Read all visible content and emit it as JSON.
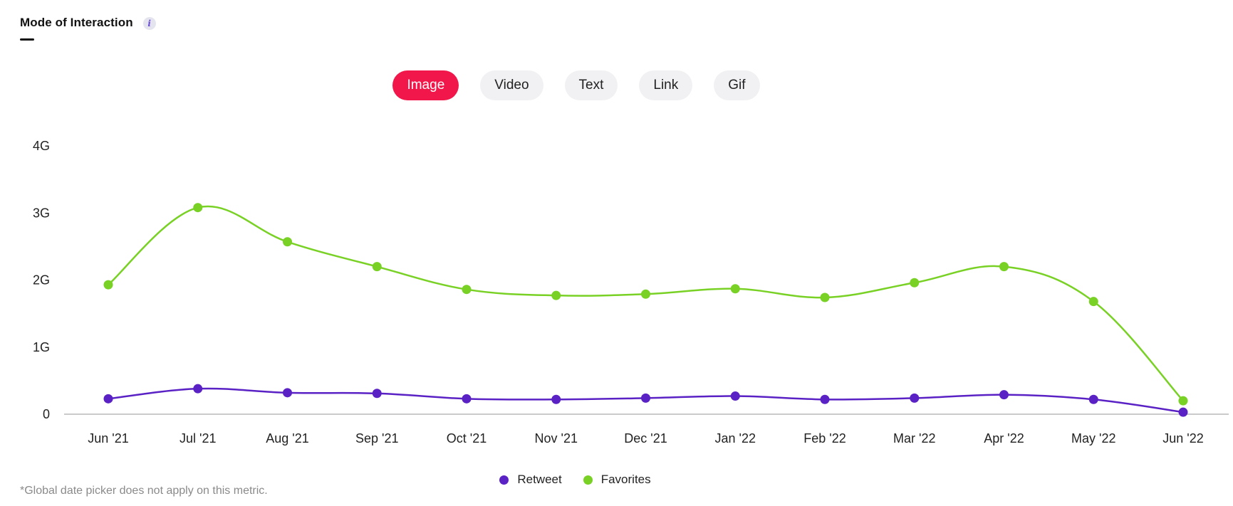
{
  "header": {
    "title": "Mode of Interaction",
    "info_glyph": "i"
  },
  "tabs": [
    {
      "label": "Image",
      "active": true
    },
    {
      "label": "Video",
      "active": false
    },
    {
      "label": "Text",
      "active": false
    },
    {
      "label": "Link",
      "active": false
    },
    {
      "label": "Gif",
      "active": false
    }
  ],
  "colors": {
    "accent": "#f1174a",
    "retweet": "#5a22c4",
    "favorites": "#78d124",
    "axis": "#aaaaaa"
  },
  "chart_data": {
    "type": "line",
    "categories": [
      "Jun '21",
      "Jul '21",
      "Aug '21",
      "Sep '21",
      "Oct '21",
      "Nov '21",
      "Dec '21",
      "Jan '22",
      "Feb '22",
      "Mar '22",
      "Apr '22",
      "May '22",
      "Jun '22"
    ],
    "series": [
      {
        "name": "Retweet",
        "values": [
          0.23,
          0.38,
          0.32,
          0.31,
          0.23,
          0.22,
          0.24,
          0.27,
          0.22,
          0.24,
          0.29,
          0.22,
          0.03
        ]
      },
      {
        "name": "Favorites",
        "values": [
          1.93,
          3.08,
          2.57,
          2.2,
          1.86,
          1.77,
          1.79,
          1.87,
          1.74,
          1.96,
          2.2,
          1.68,
          0.2
        ]
      }
    ],
    "y_ticks": [
      {
        "value": 0,
        "label": "0"
      },
      {
        "value": 1,
        "label": "1G"
      },
      {
        "value": 2,
        "label": "2G"
      },
      {
        "value": 3,
        "label": "3G"
      },
      {
        "value": 4,
        "label": "4G"
      }
    ],
    "ylim": [
      0,
      4
    ],
    "grid": false,
    "legend_position": "bottom-center"
  },
  "footnote": "*Global date picker does not apply on this metric."
}
